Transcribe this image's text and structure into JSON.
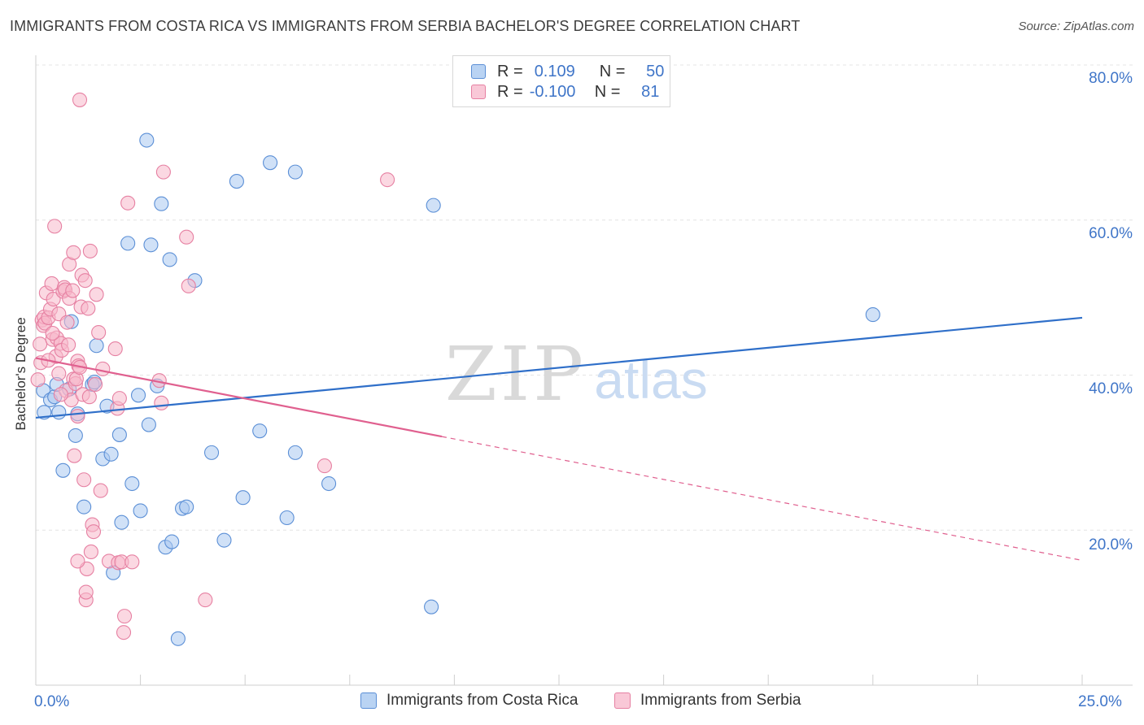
{
  "header": {
    "title": "IMMIGRANTS FROM COSTA RICA VS IMMIGRANTS FROM SERBIA BACHELOR'S DEGREE CORRELATION CHART",
    "source": "Source: ZipAtlas.com"
  },
  "watermark": {
    "zip": "ZIP",
    "atlas": "atlas"
  },
  "legend": {
    "series1": {
      "r_label": "R =",
      "r_value": "0.109",
      "n_label": "N =",
      "n_value": "50"
    },
    "series2": {
      "r_label": "R =",
      "r_value": "-0.100",
      "n_label": "N =",
      "n_value": "81"
    }
  },
  "colors": {
    "blue_fill": "#a9c8f0",
    "blue_stroke": "#5b8fd6",
    "blue_line": "#2f6fc9",
    "pink_fill": "#f7b8cb",
    "pink_stroke": "#e680a2",
    "pink_line": "#e0608f",
    "grid": "#e4e4e4",
    "axis_text": "#3f75c8"
  },
  "chart_data": {
    "type": "scatter",
    "title": "IMMIGRANTS FROM COSTA RICA VS IMMIGRANTS FROM SERBIA BACHELOR'S DEGREE CORRELATION CHART",
    "xlabel": "",
    "ylabel": "Bachelor's Degree",
    "xlim": [
      0,
      25
    ],
    "ylim": [
      0,
      80
    ],
    "x_tick_labels": [
      "0.0%",
      "25.0%"
    ],
    "y_ticks": [
      20,
      40,
      60,
      80
    ],
    "y_tick_labels": [
      "20.0%",
      "40.0%",
      "60.0%",
      "80.0%"
    ],
    "grid": true,
    "series": [
      {
        "name": "Immigrants from Costa Rica",
        "color": "#5b8fd6",
        "r": 0.109,
        "n": 50,
        "trend": {
          "x": [
            0,
            25
          ],
          "y": [
            34.5,
            47.4
          ],
          "dashed_from": null
        },
        "points": [
          [
            0.18,
            38.0
          ],
          [
            0.2,
            35.2
          ],
          [
            0.35,
            36.8
          ],
          [
            0.45,
            37.2
          ],
          [
            0.5,
            38.8
          ],
          [
            0.55,
            35.2
          ],
          [
            0.65,
            27.7
          ],
          [
            0.8,
            38.2
          ],
          [
            0.85,
            46.9
          ],
          [
            0.95,
            32.2
          ],
          [
            1.0,
            35.0
          ],
          [
            1.15,
            23.0
          ],
          [
            1.35,
            38.8
          ],
          [
            1.4,
            39.1
          ],
          [
            1.45,
            43.8
          ],
          [
            1.6,
            29.2
          ],
          [
            1.7,
            36.0
          ],
          [
            1.8,
            29.8
          ],
          [
            1.85,
            14.5
          ],
          [
            2.0,
            32.3
          ],
          [
            2.05,
            21.0
          ],
          [
            2.2,
            57.0
          ],
          [
            2.3,
            26.0
          ],
          [
            2.45,
            37.4
          ],
          [
            2.5,
            22.5
          ],
          [
            2.65,
            70.3
          ],
          [
            2.7,
            33.6
          ],
          [
            2.75,
            56.8
          ],
          [
            2.9,
            38.6
          ],
          [
            3.0,
            62.1
          ],
          [
            3.1,
            17.8
          ],
          [
            3.2,
            54.9
          ],
          [
            3.25,
            18.5
          ],
          [
            3.4,
            6.0
          ],
          [
            3.5,
            22.8
          ],
          [
            3.6,
            23.0
          ],
          [
            3.8,
            52.2
          ],
          [
            4.2,
            30.0
          ],
          [
            4.5,
            18.7
          ],
          [
            4.8,
            65.0
          ],
          [
            4.95,
            24.2
          ],
          [
            5.35,
            32.8
          ],
          [
            5.6,
            67.4
          ],
          [
            6.0,
            21.6
          ],
          [
            6.2,
            66.2
          ],
          [
            6.2,
            30.0
          ],
          [
            7.0,
            26.0
          ],
          [
            9.5,
            61.9
          ],
          [
            9.45,
            10.1
          ],
          [
            20.0,
            47.8
          ]
        ]
      },
      {
        "name": "Immigrants from Serbia",
        "color": "#e680a2",
        "r": -0.1,
        "n": 81,
        "trend": {
          "x": [
            0,
            25
          ],
          "y": [
            42.2,
            16.1
          ],
          "dashed_from": 9.7
        },
        "points": [
          [
            0.05,
            39.4
          ],
          [
            0.1,
            44.0
          ],
          [
            0.12,
            41.6
          ],
          [
            0.15,
            47.1
          ],
          [
            0.18,
            46.4
          ],
          [
            0.2,
            47.5
          ],
          [
            0.22,
            46.7
          ],
          [
            0.25,
            50.6
          ],
          [
            0.3,
            47.4
          ],
          [
            0.35,
            48.5
          ],
          [
            0.38,
            51.8
          ],
          [
            0.4,
            44.6
          ],
          [
            0.42,
            49.8
          ],
          [
            0.45,
            59.2
          ],
          [
            0.48,
            42.4
          ],
          [
            0.5,
            44.8
          ],
          [
            0.55,
            47.9
          ],
          [
            0.55,
            40.2
          ],
          [
            0.6,
            44.1
          ],
          [
            0.62,
            43.2
          ],
          [
            0.65,
            50.8
          ],
          [
            0.68,
            51.3
          ],
          [
            0.7,
            51.0
          ],
          [
            0.72,
            38.0
          ],
          [
            0.75,
            46.8
          ],
          [
            0.78,
            43.9
          ],
          [
            0.8,
            49.9
          ],
          [
            0.8,
            54.3
          ],
          [
            0.85,
            36.8
          ],
          [
            0.88,
            50.9
          ],
          [
            0.9,
            39.5
          ],
          [
            0.9,
            55.8
          ],
          [
            0.92,
            29.6
          ],
          [
            0.95,
            38.9
          ],
          [
            0.97,
            39.5
          ],
          [
            1.0,
            41.8
          ],
          [
            1.0,
            34.7
          ],
          [
            1.02,
            41.2
          ],
          [
            1.05,
            41.0
          ],
          [
            1.05,
            75.5
          ],
          [
            1.08,
            48.8
          ],
          [
            1.1,
            52.9
          ],
          [
            1.12,
            37.5
          ],
          [
            1.15,
            26.5
          ],
          [
            1.18,
            52.2
          ],
          [
            1.2,
            11.0
          ],
          [
            1.2,
            12.0
          ],
          [
            1.22,
            15.0
          ],
          [
            1.25,
            48.6
          ],
          [
            1.28,
            37.2
          ],
          [
            1.3,
            56.0
          ],
          [
            1.32,
            17.2
          ],
          [
            1.35,
            20.7
          ],
          [
            1.38,
            19.8
          ],
          [
            1.42,
            38.8
          ],
          [
            1.45,
            50.4
          ],
          [
            1.5,
            45.5
          ],
          [
            1.55,
            25.1
          ],
          [
            1.6,
            40.8
          ],
          [
            1.75,
            16.0
          ],
          [
            1.9,
            43.4
          ],
          [
            1.95,
            35.7
          ],
          [
            1.97,
            15.8
          ],
          [
            2.0,
            37.0
          ],
          [
            2.05,
            15.9
          ],
          [
            2.1,
            6.8
          ],
          [
            2.12,
            8.9
          ],
          [
            2.2,
            62.2
          ],
          [
            2.3,
            15.9
          ],
          [
            2.95,
            39.3
          ],
          [
            3.0,
            36.4
          ],
          [
            3.05,
            66.2
          ],
          [
            3.6,
            57.8
          ],
          [
            3.65,
            51.5
          ],
          [
            4.05,
            11.0
          ],
          [
            6.9,
            28.3
          ],
          [
            8.4,
            65.2
          ],
          [
            1.0,
            16.0
          ],
          [
            0.6,
            37.5
          ],
          [
            0.4,
            45.4
          ],
          [
            0.3,
            41.9
          ]
        ]
      }
    ]
  },
  "bottom_legend": {
    "item1": "Immigrants from Costa Rica",
    "item2": "Immigrants from Serbia"
  }
}
